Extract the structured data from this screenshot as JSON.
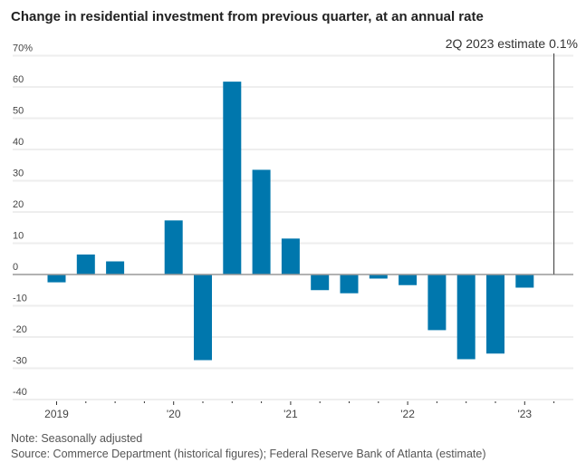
{
  "chart_data": {
    "type": "bar",
    "title": "Change in residential investment from previous quarter, at an annual rate",
    "xlabel": "",
    "ylabel": "",
    "ylim": [
      -40,
      70
    ],
    "yticks": [
      70,
      60,
      50,
      40,
      30,
      20,
      10,
      0,
      -10,
      -20,
      -30,
      -40
    ],
    "ytick_labels": [
      "70%",
      "60",
      "50",
      "40",
      "30",
      "20",
      "10",
      "0",
      "-10",
      "-20",
      "-30",
      "-40"
    ],
    "grid": true,
    "categories": [
      "2019 Q1",
      "2019 Q2",
      "2019 Q3",
      "2019 Q4",
      "2020 Q1",
      "2020 Q2",
      "2020 Q3",
      "2020 Q4",
      "2021 Q1",
      "2021 Q2",
      "2021 Q3",
      "2021 Q4",
      "2022 Q1",
      "2022 Q2",
      "2022 Q3",
      "2022 Q4",
      "2023 Q1",
      "2023 Q2"
    ],
    "values": [
      -2.5,
      6.4,
      4.2,
      0,
      17.3,
      -27.4,
      61.7,
      33.5,
      11.5,
      -5.0,
      -6.0,
      -1.3,
      -3.4,
      -17.8,
      -27.1,
      -25.3,
      -4.2,
      0.1
    ],
    "xtick_labels": [
      {
        "index": 0,
        "label": "2019"
      },
      {
        "index": 4,
        "label": "'20"
      },
      {
        "index": 8,
        "label": "'21"
      },
      {
        "index": 12,
        "label": "'22"
      },
      {
        "index": 16,
        "label": "'23"
      }
    ],
    "annotation": {
      "index": 17,
      "label": "2Q 2023 estimate 0.1%"
    },
    "colors": {
      "bar": "#0077ad",
      "grid": "#eeeeee",
      "axis": "#999999",
      "annotation_line": "#333333"
    }
  },
  "notes": {
    "note": "Note: Seasonally adjusted",
    "source": "Source: Commerce Department (historical figures); Federal Reserve Bank of Atlanta (estimate)"
  }
}
